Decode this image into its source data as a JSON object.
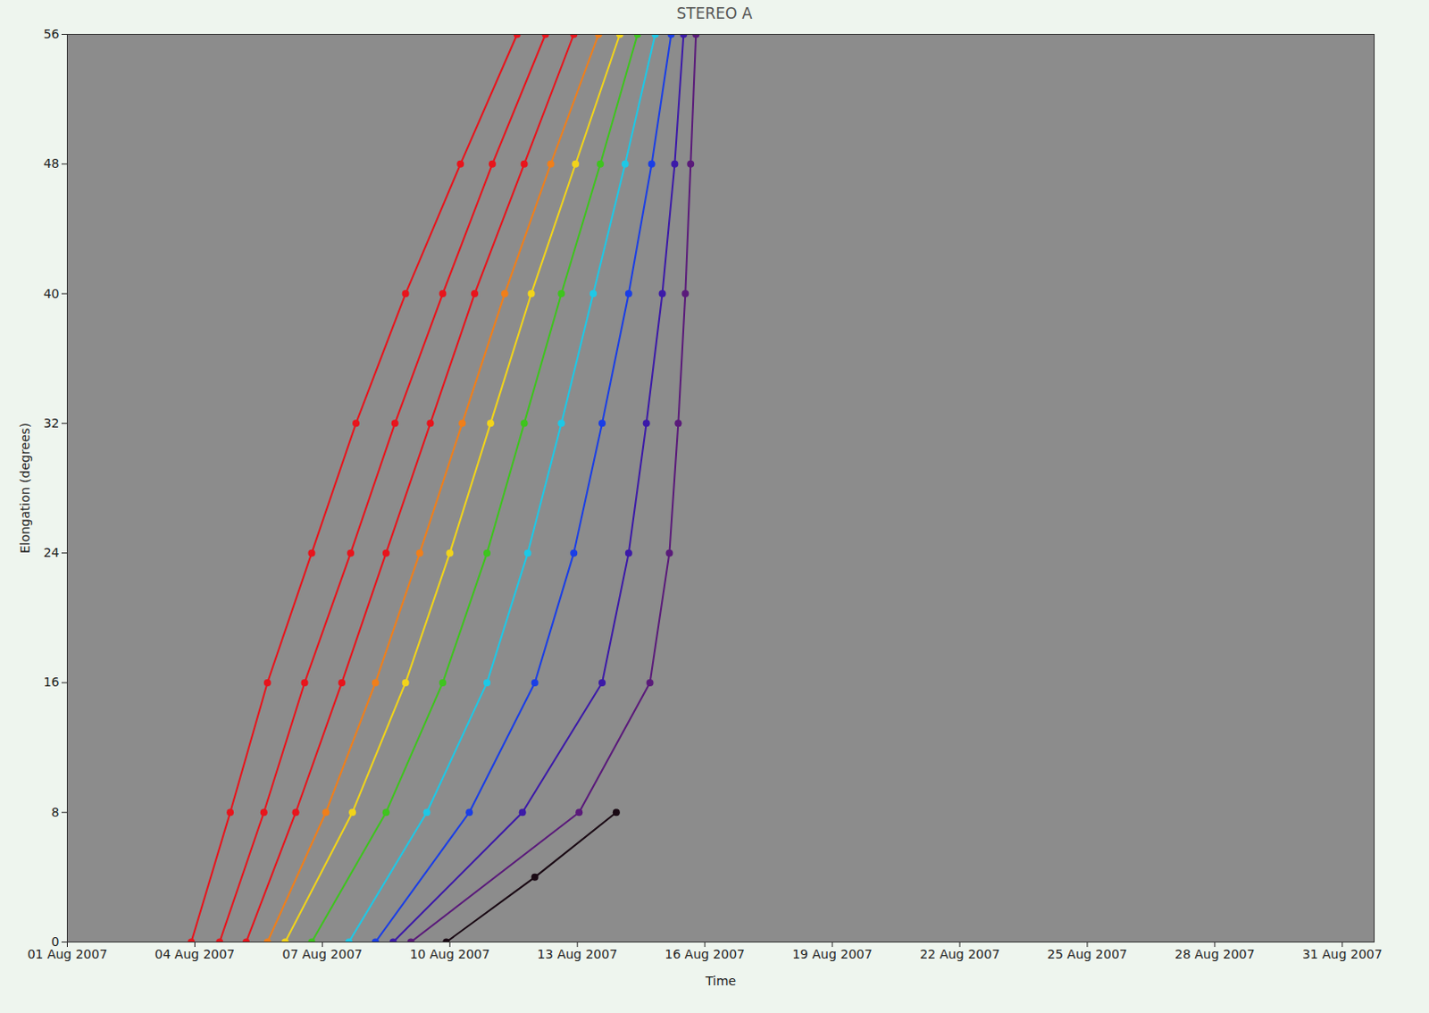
{
  "chart_data": {
    "type": "line",
    "title": "STEREO A",
    "x_label": "Time",
    "y_label": "Elongation (degrees)",
    "marker": "circle",
    "xlim": [
      "2007-08-01",
      "2007-08-31T18:00"
    ],
    "xticks": [
      {
        "value": "2007-08-01",
        "label": "01 Aug 2007"
      },
      {
        "value": "2007-08-04",
        "label": "04 Aug 2007"
      },
      {
        "value": "2007-08-07",
        "label": "07 Aug 2007"
      },
      {
        "value": "2007-08-10",
        "label": "10 Aug 2007"
      },
      {
        "value": "2007-08-13",
        "label": "13 Aug 2007"
      },
      {
        "value": "2007-08-16",
        "label": "16 Aug 2007"
      },
      {
        "value": "2007-08-19",
        "label": "19 Aug 2007"
      },
      {
        "value": "2007-08-22",
        "label": "22 Aug 2007"
      },
      {
        "value": "2007-08-25",
        "label": "25 Aug 2007"
      },
      {
        "value": "2007-08-28",
        "label": "28 Aug 2007"
      },
      {
        "value": "2007-08-31",
        "label": "31 Aug 2007"
      }
    ],
    "ylim": [
      0,
      56
    ],
    "yticks": [
      0,
      8,
      16,
      24,
      32,
      40,
      48,
      56
    ],
    "series": [
      {
        "color": "#e8141c",
        "x": [
          "2007-08-03T22:00",
          "2007-08-04T20:00",
          "2007-08-05T17:00",
          "2007-08-06T18:00",
          "2007-08-07T19:00",
          "2007-08-08T23:00",
          "2007-08-10T06:00",
          "2007-08-11T14:00"
        ],
        "values": [
          0,
          8,
          16,
          24,
          32,
          40,
          48,
          56
        ]
      },
      {
        "color": "#e8141c",
        "x": [
          "2007-08-04T14:00",
          "2007-08-05T15:00",
          "2007-08-06T14:00",
          "2007-08-07T16:00",
          "2007-08-08T17:00",
          "2007-08-09T20:00",
          "2007-08-11T00:00",
          "2007-08-12T06:00"
        ],
        "values": [
          0,
          8,
          16,
          24,
          32,
          40,
          48,
          56
        ]
      },
      {
        "color": "#e8141c",
        "x": [
          "2007-08-05T05:00",
          "2007-08-06T09:00",
          "2007-08-07T11:00",
          "2007-08-08T12:00",
          "2007-08-09T13:00",
          "2007-08-10T14:00",
          "2007-08-11T18:00",
          "2007-08-12T22:00"
        ],
        "values": [
          0,
          8,
          16,
          24,
          32,
          40,
          48,
          56
        ]
      },
      {
        "color": "#f07f1a",
        "x": [
          "2007-08-05T17:00",
          "2007-08-07T02:00",
          "2007-08-08T06:00",
          "2007-08-09T07:00",
          "2007-08-10T07:00",
          "2007-08-11T07:00",
          "2007-08-12T09:00",
          "2007-08-13T12:00"
        ],
        "values": [
          0,
          8,
          16,
          24,
          32,
          40,
          48,
          56
        ]
      },
      {
        "color": "#f2d41a",
        "x": [
          "2007-08-06T03:00",
          "2007-08-07T17:00",
          "2007-08-08T23:00",
          "2007-08-10T00:00",
          "2007-08-10T23:00",
          "2007-08-11T22:00",
          "2007-08-12T23:00",
          "2007-08-14T00:00"
        ],
        "values": [
          0,
          8,
          16,
          24,
          32,
          40,
          48,
          56
        ]
      },
      {
        "color": "#3ec41e",
        "x": [
          "2007-08-06T18:00",
          "2007-08-08T12:00",
          "2007-08-09T20:00",
          "2007-08-10T21:00",
          "2007-08-11T18:00",
          "2007-08-12T15:00",
          "2007-08-13T13:00",
          "2007-08-14T10:00"
        ],
        "values": [
          0,
          8,
          16,
          24,
          32,
          40,
          48,
          56
        ]
      },
      {
        "color": "#1ec8e6",
        "x": [
          "2007-08-07T15:00",
          "2007-08-09T11:00",
          "2007-08-10T21:00",
          "2007-08-11T20:00",
          "2007-08-12T15:00",
          "2007-08-13T09:00",
          "2007-08-14T03:00",
          "2007-08-14T20:00"
        ],
        "values": [
          0,
          8,
          16,
          24,
          32,
          40,
          48,
          56
        ]
      },
      {
        "color": "#1a3ee6",
        "x": [
          "2007-08-08T06:00",
          "2007-08-10T11:00",
          "2007-08-12T00:00",
          "2007-08-12T22:00",
          "2007-08-13T14:00",
          "2007-08-14T05:00",
          "2007-08-14T18:00",
          "2007-08-15T05:00"
        ],
        "values": [
          0,
          8,
          16,
          24,
          32,
          40,
          48,
          56
        ]
      },
      {
        "color": "#3c1aa8",
        "x": [
          "2007-08-08T16:00",
          "2007-08-11T17:00",
          "2007-08-13T14:00",
          "2007-08-14T05:00",
          "2007-08-14T15:00",
          "2007-08-15T00:00",
          "2007-08-15T07:00",
          "2007-08-15T12:00"
        ],
        "values": [
          0,
          8,
          16,
          24,
          32,
          40,
          48,
          56
        ]
      },
      {
        "color": "#5a1a7a",
        "x": [
          "2007-08-09T02:00",
          "2007-08-13T01:00",
          "2007-08-14T17:00",
          "2007-08-15T04:00",
          "2007-08-15T09:00",
          "2007-08-15T13:00",
          "2007-08-15T16:00",
          "2007-08-15T19:00"
        ],
        "values": [
          0,
          8,
          16,
          24,
          32,
          40,
          48,
          56
        ]
      },
      {
        "color": "#1a0a14",
        "x": [
          "2007-08-09T22:00",
          "2007-08-12T00:00",
          "2007-08-13T22:00"
        ],
        "values": [
          0,
          4,
          8
        ]
      }
    ]
  }
}
